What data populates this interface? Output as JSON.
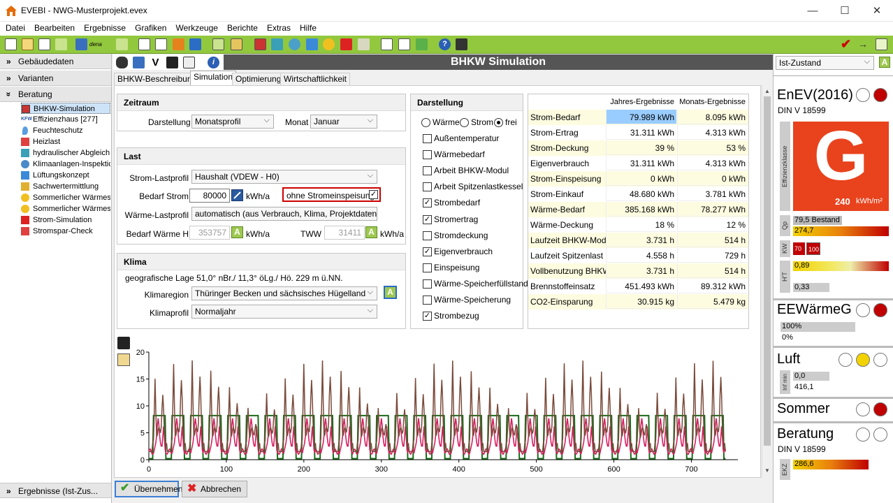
{
  "window": {
    "title": "EVEBI - NWG-Musterprojekt.evex",
    "minimize": "—",
    "maximize": "☐",
    "close": "✕"
  },
  "menu": [
    "Datei",
    "Bearbeiten",
    "Ergebnisse",
    "Grafiken",
    "Werkzeuge",
    "Berichte",
    "Extras",
    "Hilfe"
  ],
  "toolbar": {
    "dena_label": "dena"
  },
  "left": {
    "sections": {
      "gebaeude": "Gebäudedaten",
      "varianten": "Varianten",
      "beratung": "Beratung",
      "ergebnisse": "Ergebnisse (Ist-Zus..."
    },
    "tree": [
      "BHKW-Simulation",
      "Effizienzhaus [277]",
      "Feuchteschutz",
      "Heizlast",
      "hydraulischer Abgleich",
      "Klimaanlagen-Inspektion",
      "Lüftungskonzept",
      "Sachwertermittlung",
      "Sommerlicher Wärmeschutz",
      "Sommerlicher Wärmeschutz",
      "Strom-Simulation",
      "Stromspar-Check"
    ],
    "kfw_prefix": "KFW"
  },
  "main": {
    "title": "BHKW Simulation",
    "tabs": [
      "BHKW-Beschreibung",
      "Simulation",
      "Optimierung",
      "Wirtschaftlichkeit"
    ],
    "zeitraum": {
      "header": "Zeitraum",
      "darstellung_label": "Darstellung",
      "darstellung_value": "Monatsprofil",
      "monat_label": "Monat",
      "monat_value": "Januar"
    },
    "last": {
      "header": "Last",
      "strom_profil_label": "Strom-Lastprofil",
      "strom_profil_value": "Haushalt (VDEW - H0)",
      "bedarf_strom_label": "Bedarf Strom",
      "bedarf_strom_value": "80000",
      "unit_kwh_a": "kWh/a",
      "ohne_label": "ohne Stromeinspeisung",
      "waerme_profil_label": "Wärme-Lastprofil",
      "waerme_profil_value": "automatisch (aus Verbrauch, Klima, Projektdaten)",
      "bedarf_waerme_label": "Bedarf Wärme H",
      "bedarf_waerme_value": "353757",
      "tww_label": "TWW",
      "tww_value": "31411"
    },
    "klima": {
      "header": "Klima",
      "lage": "geografische Lage  51,0° nBr./ 11,3° öLg./ Hö. 229 m ü.NN.",
      "region_label": "Klimaregion",
      "region_value": "Thüringer Becken und sächsisches Hügelland",
      "profil_label": "Klimaprofil",
      "profil_value": "Normaljahr"
    },
    "darstellung": {
      "header": "Darstellung",
      "radios": [
        "Wärme",
        "Strom",
        "frei"
      ],
      "checks": [
        {
          "label": "Außentemperatur",
          "checked": false
        },
        {
          "label": "Wärmebedarf",
          "checked": false
        },
        {
          "label": "Arbeit BHKW-Modul",
          "checked": false
        },
        {
          "label": "Arbeit Spitzenlastkessel",
          "checked": false
        },
        {
          "label": "Strombedarf",
          "checked": true
        },
        {
          "label": "Stromertrag",
          "checked": true
        },
        {
          "label": "Stromdeckung",
          "checked": false
        },
        {
          "label": "Eigenverbrauch",
          "checked": true
        },
        {
          "label": "Einspeisung",
          "checked": false
        },
        {
          "label": "Wärme-Speicherfüllstand",
          "checked": false
        },
        {
          "label": "Wärme-Speicherung",
          "checked": false
        },
        {
          "label": "Strombezug",
          "checked": true
        }
      ]
    },
    "results": {
      "headers": [
        "Jahres-Ergebnisse",
        "Monats-Ergebnisse"
      ],
      "rows": [
        [
          "Strom-Bedarf",
          "79.989 kWh",
          "8.095 kWh"
        ],
        [
          "Strom-Ertrag",
          "31.311 kWh",
          "4.313 kWh"
        ],
        [
          "Strom-Deckung",
          "39 %",
          "53 %"
        ],
        [
          "Eigenverbrauch",
          "31.311 kWh",
          "4.313 kWh"
        ],
        [
          "Strom-Einspeisung",
          "0 kWh",
          "0 kWh"
        ],
        [
          "Strom-Einkauf",
          "48.680 kWh",
          "3.781 kWh"
        ],
        [
          "Wärme-Bedarf",
          "385.168 kWh",
          "78.277 kWh"
        ],
        [
          "Wärme-Deckung",
          "18 %",
          "12 %"
        ],
        [
          "Laufzeit BHKW-Modul",
          "3.731 h",
          "514 h"
        ],
        [
          "Laufzeit Spitzenlast",
          "4.558 h",
          "729 h"
        ],
        [
          "Vollbenutzung BHKW",
          "3.731 h",
          "514 h"
        ],
        [
          "Brennstoffeinsatz",
          "451.493 kWh",
          "89.312 kWh"
        ],
        [
          "CO2-Einsparung",
          "30.915 kg",
          "5.479 kg"
        ]
      ]
    },
    "buttons": {
      "ok": "Übernehmen",
      "cancel": "Abbrechen"
    }
  },
  "chart_data": {
    "type": "line",
    "xlim": [
      0,
      760
    ],
    "ylim": [
      0,
      20
    ],
    "xticks": [
      "0",
      "100",
      "200",
      "300",
      "400",
      "500",
      "600",
      "700"
    ],
    "yticks": [
      "0",
      "5",
      "10",
      "15",
      "20"
    ],
    "series": [
      {
        "color": "#7a4a3a",
        "description": "daily periodic peaks ~15-20",
        "period": 24
      },
      {
        "color": "#d62060",
        "description": "oscillating ~2-9",
        "period": 24
      },
      {
        "color": "#1a6a1a",
        "description": "step 0 / 8.2",
        "period": 24
      }
    ],
    "grid": false
  },
  "right": {
    "state": "Ist-Zustand",
    "state_badge": "A",
    "enev": {
      "title": "EnEV(2016)",
      "sub": "DIN V 18599",
      "klasse_label": "Effizienzklasse",
      "letter": "G",
      "value": "240",
      "unit": "kWh/m²",
      "qp_label": "Qp",
      "qp1": "79,5",
      "qp1_tag": "Bestand",
      "qp2": "274,7",
      "kw_label": "KW",
      "kw1": "70",
      "kw2": "100",
      "ht_label": "H'T",
      "ht1": "0,89",
      "ht2": "0,33"
    },
    "eew": {
      "title": "EEWärmeG",
      "v1": "100%",
      "v2": "0%"
    },
    "luft": {
      "title": "Luft",
      "label": "Inf min",
      "v1": "0,0",
      "v2": "416,1"
    },
    "sommer": {
      "title": "Sommer"
    },
    "beratung": {
      "title": "Beratung",
      "sub": "DIN V 18599",
      "ekz_label": "EKZ",
      "ekz": "286,6"
    },
    "colors": {
      "red": "#c00000",
      "yellow": "#f2d200",
      "klasse": "#e8431d"
    }
  }
}
